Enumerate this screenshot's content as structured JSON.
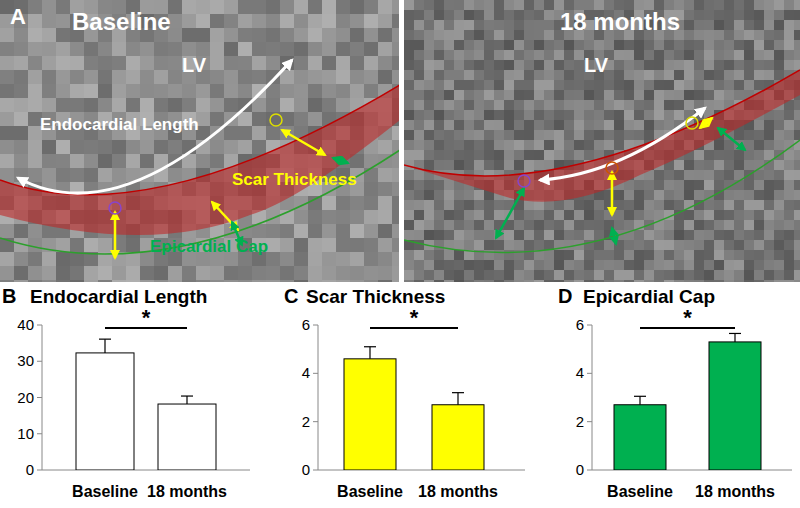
{
  "panel_a": {
    "label": "A",
    "images": [
      {
        "title": "Baseline",
        "chamber": "LV"
      },
      {
        "title": "18 months",
        "chamber": "LV"
      }
    ],
    "annotations": {
      "endocardial_length": "Endocardial Length",
      "scar_thickness": "Scar Thickness",
      "epicardial_cap": "Epicardial Cap"
    }
  },
  "chart_data": [
    {
      "type": "bar",
      "title": "Endocardial Length",
      "annotations": [
        "B",
        "*"
      ],
      "categories": [
        "Baseline",
        "18 months"
      ],
      "values": [
        32.3,
        18.2
      ],
      "errors": [
        3.8,
        2.2
      ],
      "color": "#ffffff",
      "ylim": [
        0,
        40
      ],
      "yticks": [
        0,
        10,
        20,
        30,
        40
      ]
    },
    {
      "type": "bar",
      "title": "Scar Thickness",
      "annotations": [
        "C",
        "*"
      ],
      "categories": [
        "Baseline",
        "18 months"
      ],
      "values": [
        4.6,
        2.7
      ],
      "errors": [
        0.5,
        0.5
      ],
      "color": "#ffff00",
      "ylim": [
        0,
        6
      ],
      "yticks": [
        0,
        2,
        4,
        6
      ]
    },
    {
      "type": "bar",
      "title": "Epicardial Cap",
      "annotations": [
        "D",
        "*"
      ],
      "categories": [
        "Baseline",
        "18 months"
      ],
      "values": [
        2.7,
        5.3
      ],
      "errors": [
        0.35,
        0.35
      ],
      "color": "#00b050",
      "ylim": [
        0,
        6
      ],
      "yticks": [
        0,
        2,
        4,
        6
      ]
    }
  ]
}
